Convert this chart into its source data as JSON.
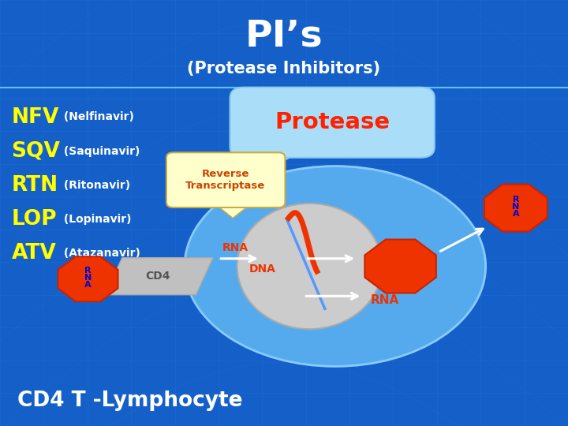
{
  "bg_color": "#1560c8",
  "title": "PI’s",
  "subtitle": "(Protease Inhibitors)",
  "title_color": "#ffffff",
  "subtitle_color": "#ffffff",
  "drug_labels": [
    [
      "NFV",
      " (Nelfinavir)"
    ],
    [
      "SQV",
      " (Saquinavir)"
    ],
    [
      "RTN",
      " (Ritonavir)"
    ],
    [
      "LOP",
      " (Lopinavir)"
    ],
    [
      "ATV",
      " (Atazanavir)"
    ]
  ],
  "drug_label_color_bold": "#ffff00",
  "drug_label_color_normal": "#ffffff",
  "bottom_label": "CD4 T -Lymphocyte",
  "bottom_label_color": "#ffffff",
  "cell_ellipse_color": "#55aaee",
  "nucleus_color": "#cccccc",
  "protease_bubble_color": "#aaddf8",
  "protease_text_color": "#ff2200",
  "rt_box_color": "#ffffcc",
  "rt_text_color": "#cc4400",
  "rna_octagon_color": "#ee3300",
  "rna_text_color": "#0000cc",
  "dna_label_color": "#ee3300",
  "rna_label_color": "#ee3300"
}
